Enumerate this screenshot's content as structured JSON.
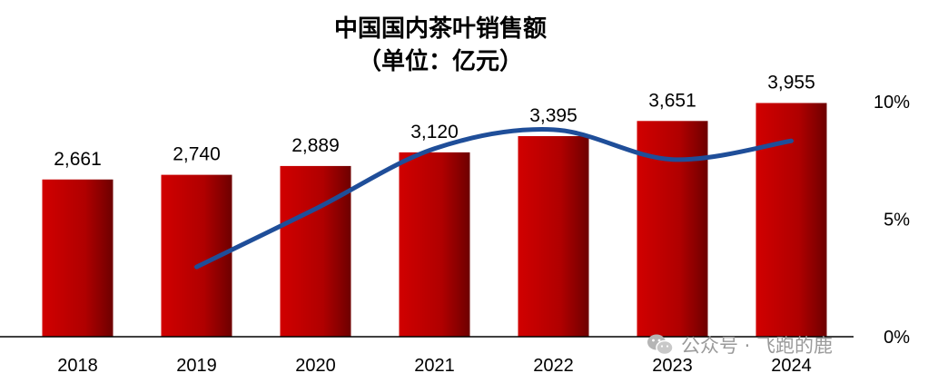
{
  "chart_data": {
    "type": "bar",
    "title": "中国国内茶叶销售额",
    "subtitle": "（单位：亿元）",
    "categories": [
      "2018",
      "2019",
      "2020",
      "2021",
      "2022",
      "2023",
      "2024"
    ],
    "series": [
      {
        "values": [
          2661,
          2740,
          2889,
          3120,
          3395,
          3651,
          3955
        ],
        "data_labels": [
          "2,661",
          "2,740",
          "2,889",
          "3,120",
          "3,395",
          "3,651",
          "3,955"
        ],
        "type": "bar",
        "axis": "left",
        "color": "#c00000"
      },
      {
        "x": [
          "2019",
          "2020",
          "2021",
          "2022",
          "2023",
          "2024"
        ],
        "values": [
          2.97,
          5.44,
          8.0,
          8.81,
          7.54,
          8.33
        ],
        "type": "line",
        "axis": "right",
        "unit": "%",
        "color": "#1f4e99"
      }
    ],
    "ylim": [
      0,
      4700
    ],
    "y2lim": [
      0,
      10
    ],
    "y2ticks": [
      "0%",
      "5%",
      "10%"
    ],
    "grid": false,
    "legend": "none"
  },
  "watermark": {
    "text": "公众号 · 飞跑的鹿",
    "icon": "wechat-icon"
  }
}
